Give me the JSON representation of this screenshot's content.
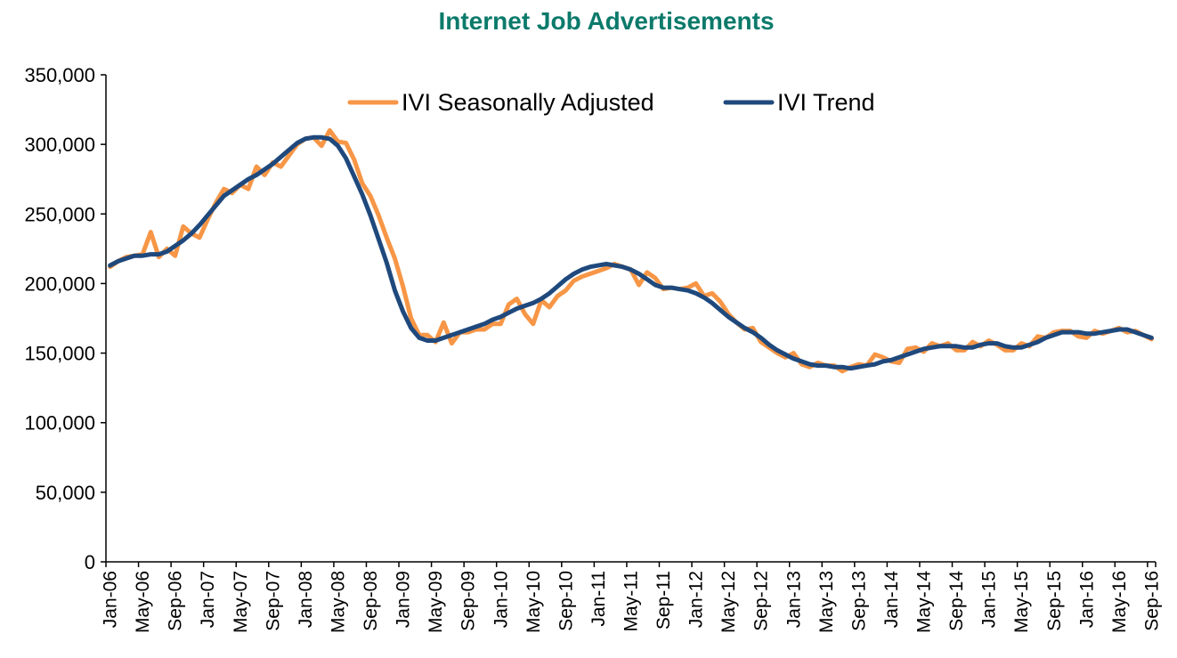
{
  "chart_data": {
    "type": "line",
    "title": "Internet Job Advertisements",
    "xlabel": "",
    "ylabel": "",
    "ylim": [
      0,
      350000
    ],
    "yticks": [
      0,
      50000,
      100000,
      150000,
      200000,
      250000,
      300000,
      350000
    ],
    "ytick_labels": [
      "0",
      "50,000",
      "100,000",
      "150,000",
      "200,000",
      "250,000",
      "300,000",
      "350,000"
    ],
    "x_tick_labels": [
      "Jan-06",
      "May-06",
      "Sep-06",
      "Jan-07",
      "May-07",
      "Sep-07",
      "Jan-08",
      "May-08",
      "Sep-08",
      "Jan-09",
      "May-09",
      "Sep-09",
      "Jan-10",
      "May-10",
      "Sep-10",
      "Jan-11",
      "May-11",
      "Sep-11",
      "Jan-12",
      "May-12",
      "Sep-12",
      "Jan-13",
      "May-13",
      "Sep-13",
      "Jan-14",
      "May-14",
      "Sep-14",
      "Jan-15",
      "May-15",
      "Sep-15",
      "Jan-16",
      "May-16",
      "Sep-16"
    ],
    "x_tick_interval_months": 4,
    "num_points": 129,
    "legend_position": "top",
    "series": [
      {
        "name": "IVI Seasonally Adjusted",
        "color": "#f79646",
        "values": [
          212000,
          216000,
          219000,
          220000,
          221000,
          237000,
          219000,
          225000,
          220000,
          241000,
          236000,
          233000,
          246000,
          258000,
          268000,
          265000,
          271000,
          268000,
          284000,
          278000,
          287000,
          284000,
          292000,
          300000,
          304000,
          305000,
          299000,
          310000,
          302000,
          301000,
          289000,
          272000,
          263000,
          249000,
          233000,
          218000,
          198000,
          175000,
          163000,
          163000,
          158000,
          172000,
          157000,
          165000,
          165000,
          167000,
          167000,
          171000,
          171000,
          185000,
          189000,
          178000,
          171000,
          188000,
          183000,
          191000,
          195000,
          202000,
          205000,
          207000,
          209000,
          211000,
          214000,
          212000,
          210000,
          199000,
          208000,
          204000,
          196000,
          197000,
          196000,
          197000,
          200000,
          191000,
          193000,
          187000,
          178000,
          172000,
          167000,
          168000,
          158000,
          154000,
          150000,
          147000,
          150000,
          142000,
          140000,
          143000,
          141000,
          141000,
          137000,
          140000,
          142000,
          141000,
          149000,
          147000,
          144000,
          143000,
          153000,
          154000,
          151000,
          157000,
          155000,
          157000,
          152000,
          152000,
          158000,
          155000,
          159000,
          156000,
          152000,
          152000,
          157000,
          155000,
          162000,
          161000,
          165000,
          166000,
          166000,
          162000,
          161000,
          166000,
          164000,
          166000,
          168000,
          165000,
          166000,
          163000,
          160000
        ]
      },
      {
        "name": "IVI Trend",
        "color": "#1f497d",
        "values": [
          213000,
          216000,
          218000,
          220000,
          220000,
          221000,
          221000,
          223000,
          227000,
          231000,
          236000,
          242000,
          249000,
          256000,
          263000,
          267000,
          271000,
          275000,
          278000,
          282000,
          286000,
          291000,
          296000,
          301000,
          304000,
          305000,
          305000,
          304000,
          299000,
          290000,
          277000,
          264000,
          249000,
          232000,
          215000,
          195000,
          180000,
          168000,
          161000,
          159000,
          159000,
          161000,
          163000,
          165000,
          167000,
          169000,
          171000,
          174000,
          176000,
          179000,
          182000,
          184000,
          186000,
          189000,
          193000,
          198000,
          203000,
          207000,
          210000,
          212000,
          213000,
          214000,
          213000,
          212000,
          210000,
          207000,
          203000,
          199000,
          197000,
          197000,
          196000,
          195000,
          193000,
          190000,
          186000,
          181000,
          176000,
          172000,
          168000,
          165000,
          161000,
          156000,
          152000,
          149000,
          146000,
          144000,
          142000,
          141000,
          141000,
          140000,
          140000,
          139000,
          140000,
          141000,
          142000,
          144000,
          145000,
          147000,
          149000,
          151000,
          153000,
          154000,
          155000,
          155000,
          155000,
          154000,
          154000,
          156000,
          157000,
          157000,
          155000,
          154000,
          154000,
          156000,
          158000,
          161000,
          163000,
          165000,
          165000,
          165000,
          164000,
          164000,
          165000,
          166000,
          167000,
          167000,
          165000,
          163000,
          161000
        ]
      }
    ]
  }
}
